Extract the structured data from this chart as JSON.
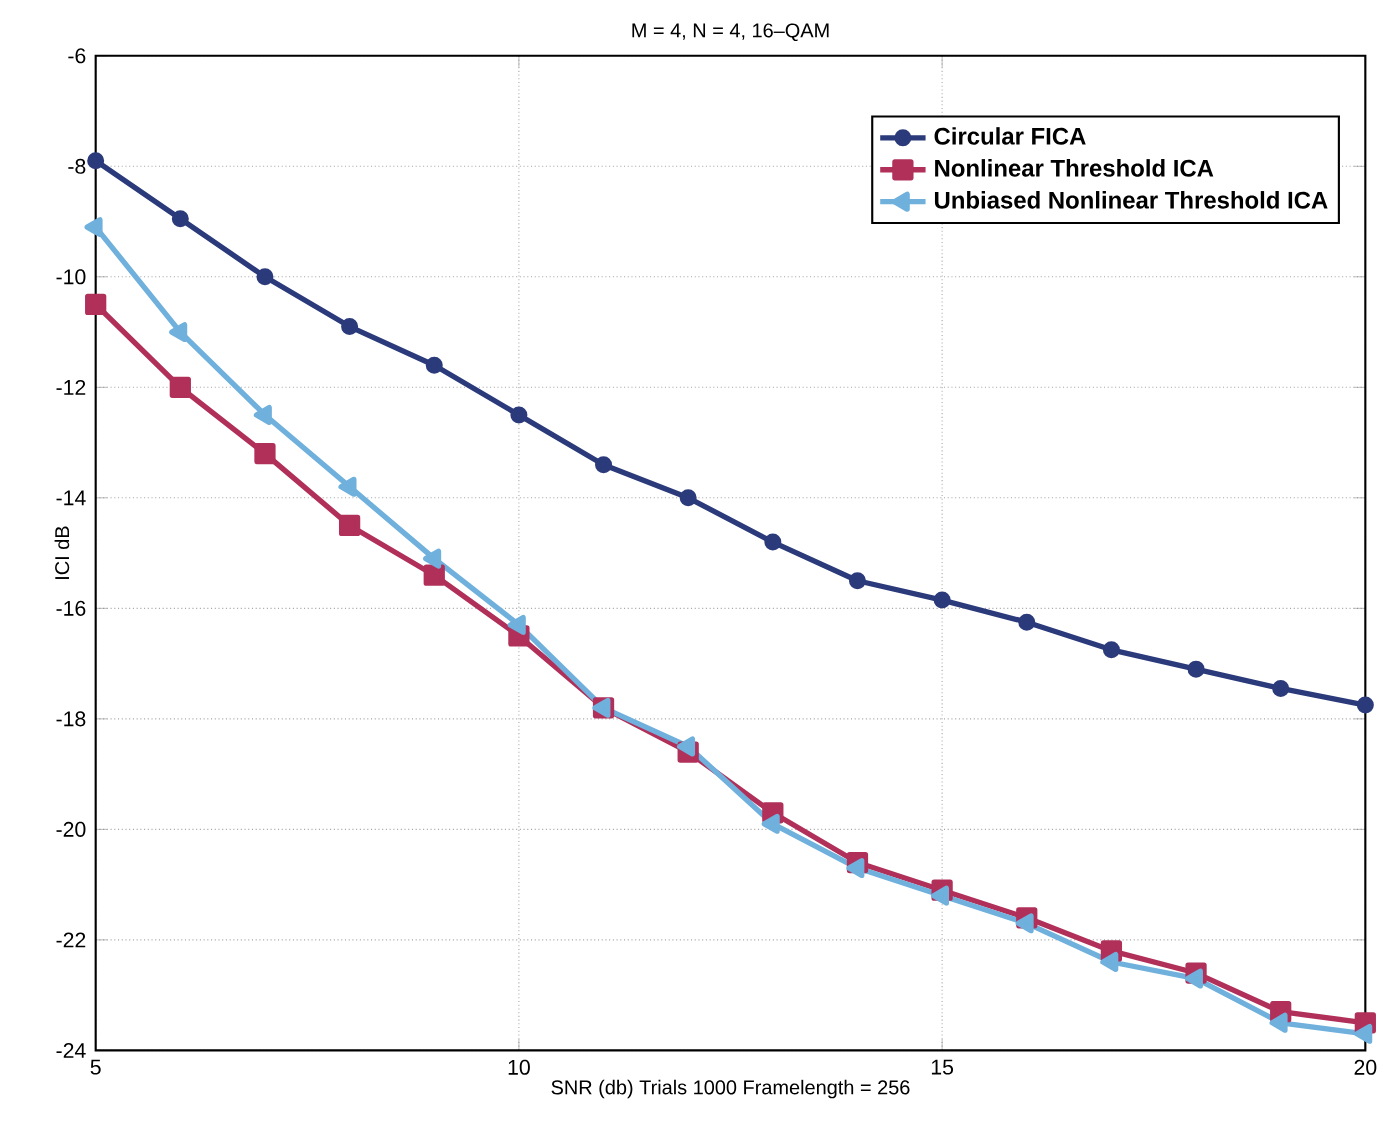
{
  "chart_data": {
    "type": "line",
    "title": "M = 4, N = 4,  16–QAM",
    "xlabel": "SNR (db)   Trials  1000       Framelength = 256",
    "ylabel": "ICI dB",
    "x": [
      5,
      6,
      7,
      8,
      9,
      10,
      11,
      12,
      13,
      14,
      15,
      16,
      17,
      18,
      19,
      20
    ],
    "series": [
      {
        "name": "Circular FICA",
        "color": "#2b3a7a",
        "marker": "circle",
        "values": [
          -7.9,
          -8.95,
          -10.0,
          -10.9,
          -11.6,
          -12.5,
          -13.4,
          -14.0,
          -14.8,
          -15.5,
          -15.85,
          -16.25,
          -16.75,
          -17.1,
          -17.45,
          -17.75
        ]
      },
      {
        "name": "Nonlinear Threshold ICA",
        "color": "#b0305a",
        "marker": "square",
        "values": [
          -10.5,
          -12.0,
          -13.2,
          -14.5,
          -15.4,
          -16.5,
          -17.8,
          -18.6,
          -19.7,
          -20.6,
          -21.1,
          -21.6,
          -22.2,
          -22.6,
          -23.3,
          -23.5
        ]
      },
      {
        "name": "Unbiased Nonlinear Threshold ICA",
        "color": "#6fb0dc",
        "marker": "triangle",
        "values": [
          -9.1,
          -11.0,
          -12.5,
          -13.8,
          -15.1,
          -16.3,
          -17.8,
          -18.5,
          -19.9,
          -20.7,
          -21.2,
          -21.7,
          -22.4,
          -22.7,
          -23.5,
          -23.7
        ]
      }
    ],
    "xlim": [
      5,
      20
    ],
    "xticks": [
      5,
      10,
      15,
      20
    ],
    "ylim": [
      -24,
      -6
    ],
    "yticks": [
      -24,
      -22,
      -20,
      -18,
      -16,
      -14,
      -12,
      -10,
      -8,
      -6
    ],
    "grid": true,
    "legend": "top right",
    "line_style": "solid"
  }
}
